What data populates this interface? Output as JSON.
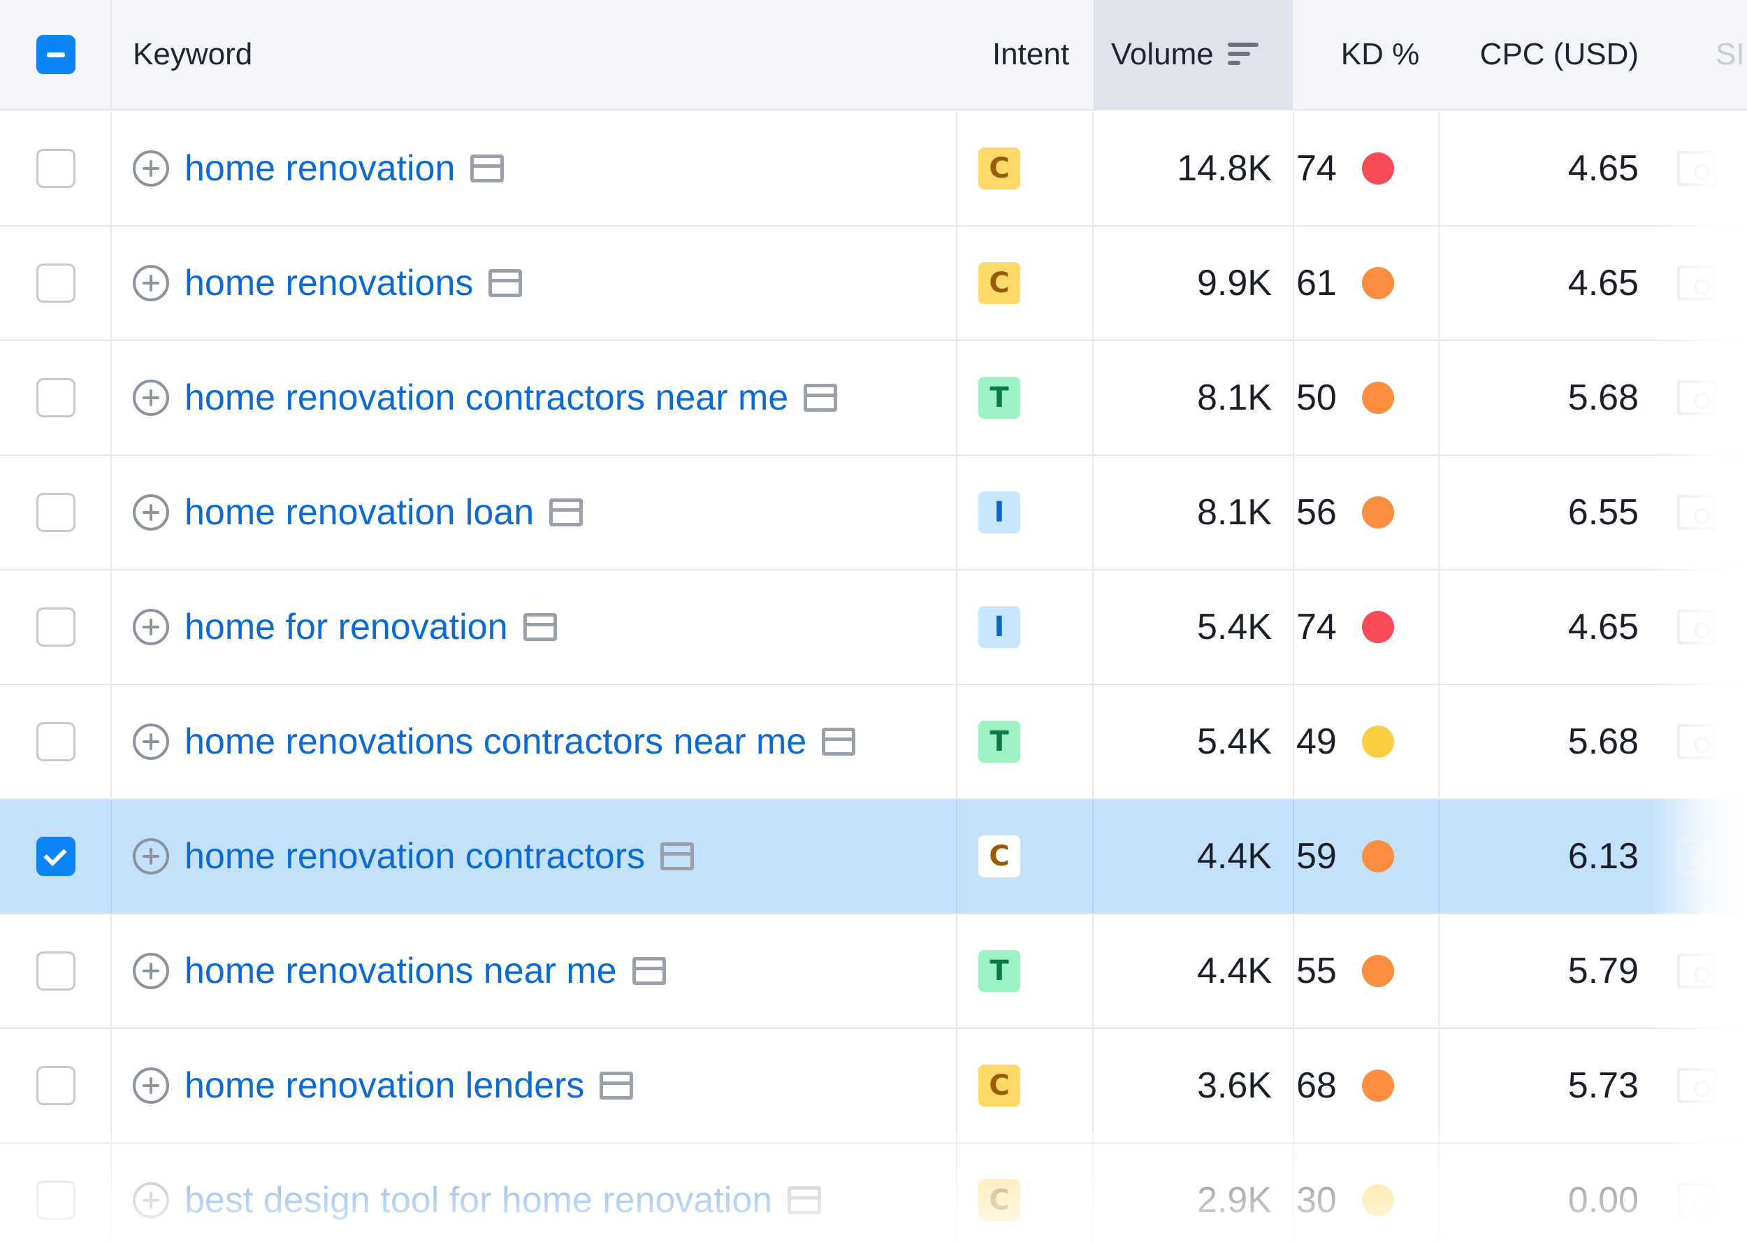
{
  "colors": {
    "link": "#0a6ad6",
    "selected_row": "#c4e1fb",
    "checkbox_active": "#0a84f7",
    "kd_red": "#f84b57",
    "kd_orange": "#fb8d3f",
    "kd_yellow": "#fbcd40"
  },
  "intent_styles": {
    "C": {
      "bg": "#fcd968",
      "fg": "#9a5a00"
    },
    "T": {
      "bg": "#9cf2c4",
      "fg": "#0a7a4a"
    },
    "I": {
      "bg": "#c5e6fe",
      "fg": "#0a66c0"
    }
  },
  "header": {
    "select_all_state": "partial",
    "keyword": "Keyword",
    "intent": "Intent",
    "volume": "Volume",
    "kd": "KD %",
    "cpc": "CPC (USD)",
    "serp_cut": "SI",
    "sort_icon": "sort-descending-icon"
  },
  "rows": [
    {
      "keyword": "home renovation",
      "intent": "C",
      "volume": "14.8K",
      "kd": "74",
      "kd_color": "#f84b57",
      "cpc": "4.65",
      "checked": false
    },
    {
      "keyword": "home renovations",
      "intent": "C",
      "volume": "9.9K",
      "kd": "61",
      "kd_color": "#fb8d3f",
      "cpc": "4.65",
      "checked": false
    },
    {
      "keyword": "home renovation contractors near me",
      "intent": "T",
      "volume": "8.1K",
      "kd": "50",
      "kd_color": "#fb8d3f",
      "cpc": "5.68",
      "checked": false
    },
    {
      "keyword": "home renovation loan",
      "intent": "I",
      "volume": "8.1K",
      "kd": "56",
      "kd_color": "#fb8d3f",
      "cpc": "6.55",
      "checked": false
    },
    {
      "keyword": "home for renovation",
      "intent": "I",
      "volume": "5.4K",
      "kd": "74",
      "kd_color": "#f84b57",
      "cpc": "4.65",
      "checked": false
    },
    {
      "keyword": "home renovations contractors near me",
      "intent": "T",
      "volume": "5.4K",
      "kd": "49",
      "kd_color": "#fbcd40",
      "cpc": "5.68",
      "checked": false
    },
    {
      "keyword": "home renovation contractors",
      "intent": "C",
      "volume": "4.4K",
      "kd": "59",
      "kd_color": "#fb8d3f",
      "cpc": "6.13",
      "checked": true
    },
    {
      "keyword": "home renovations near me",
      "intent": "T",
      "volume": "4.4K",
      "kd": "55",
      "kd_color": "#fb8d3f",
      "cpc": "5.79",
      "checked": false
    },
    {
      "keyword": "home renovation lenders",
      "intent": "C",
      "volume": "3.6K",
      "kd": "68",
      "kd_color": "#fb8d3f",
      "cpc": "5.73",
      "checked": false
    },
    {
      "keyword": "best design tool for home renovation",
      "intent": "C",
      "volume": "2.9K",
      "kd": "30",
      "kd_color": "#fbcd40",
      "cpc": "0.00",
      "checked": false
    }
  ]
}
